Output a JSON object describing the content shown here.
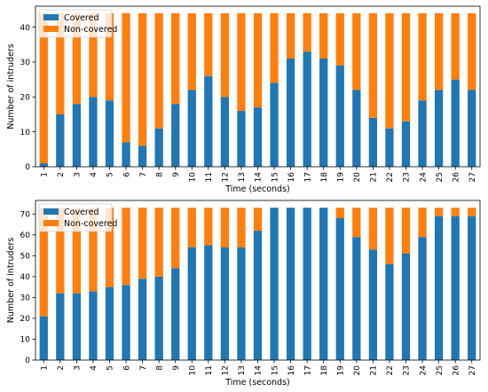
{
  "chart_data": [
    {
      "type": "bar",
      "stacked": true,
      "xlabel": "Time (seconds)",
      "ylabel": "Number of intruders",
      "ylim": [
        0,
        46
      ],
      "yticks": [
        0,
        10,
        20,
        30,
        40
      ],
      "legend": "upper-left",
      "categories": [
        "1",
        "2",
        "3",
        "4",
        "5",
        "6",
        "7",
        "8",
        "9",
        "10",
        "11",
        "12",
        "13",
        "14",
        "15",
        "16",
        "17",
        "18",
        "19",
        "20",
        "21",
        "22",
        "23",
        "24",
        "25",
        "26",
        "27"
      ],
      "series": [
        {
          "name": "Covered",
          "color": "#1f77b4",
          "values": [
            1,
            15,
            18,
            20,
            19,
            7,
            6,
            11,
            18,
            22,
            26,
            20,
            16,
            17,
            24,
            31,
            33,
            31,
            29,
            22,
            14,
            11,
            13,
            19,
            22,
            25,
            22
          ]
        },
        {
          "name": "Non-covered",
          "color": "#ff7f0e",
          "values": [
            43,
            29,
            26,
            24,
            25,
            37,
            38,
            33,
            26,
            22,
            18,
            24,
            28,
            27,
            20,
            13,
            11,
            13,
            15,
            22,
            30,
            33,
            31,
            25,
            22,
            19,
            22
          ]
        }
      ]
    },
    {
      "type": "bar",
      "stacked": true,
      "xlabel": "Time (seconds)",
      "ylabel": "Number of intruders",
      "ylim": [
        0,
        76.5
      ],
      "yticks": [
        0,
        10,
        20,
        30,
        40,
        50,
        60,
        70
      ],
      "legend": "upper-left",
      "categories": [
        "1",
        "2",
        "3",
        "4",
        "5",
        "6",
        "7",
        "8",
        "9",
        "10",
        "11",
        "12",
        "13",
        "14",
        "15",
        "16",
        "17",
        "18",
        "19",
        "20",
        "21",
        "22",
        "23",
        "24",
        "25",
        "26",
        "27"
      ],
      "series": [
        {
          "name": "Covered",
          "color": "#1f77b4",
          "values": [
            21,
            32,
            32,
            33,
            35,
            36,
            39,
            40,
            44,
            54,
            55,
            54,
            54,
            62,
            73,
            73,
            73,
            73,
            68,
            59,
            53,
            46,
            51,
            59,
            69,
            69,
            69
          ]
        },
        {
          "name": "Non-covered",
          "color": "#ff7f0e",
          "values": [
            52,
            41,
            41,
            40,
            38,
            37,
            34,
            33,
            29,
            19,
            18,
            19,
            19,
            11,
            0,
            0,
            0,
            0,
            5,
            14,
            20,
            27,
            22,
            14,
            4,
            4,
            4
          ]
        }
      ]
    }
  ]
}
